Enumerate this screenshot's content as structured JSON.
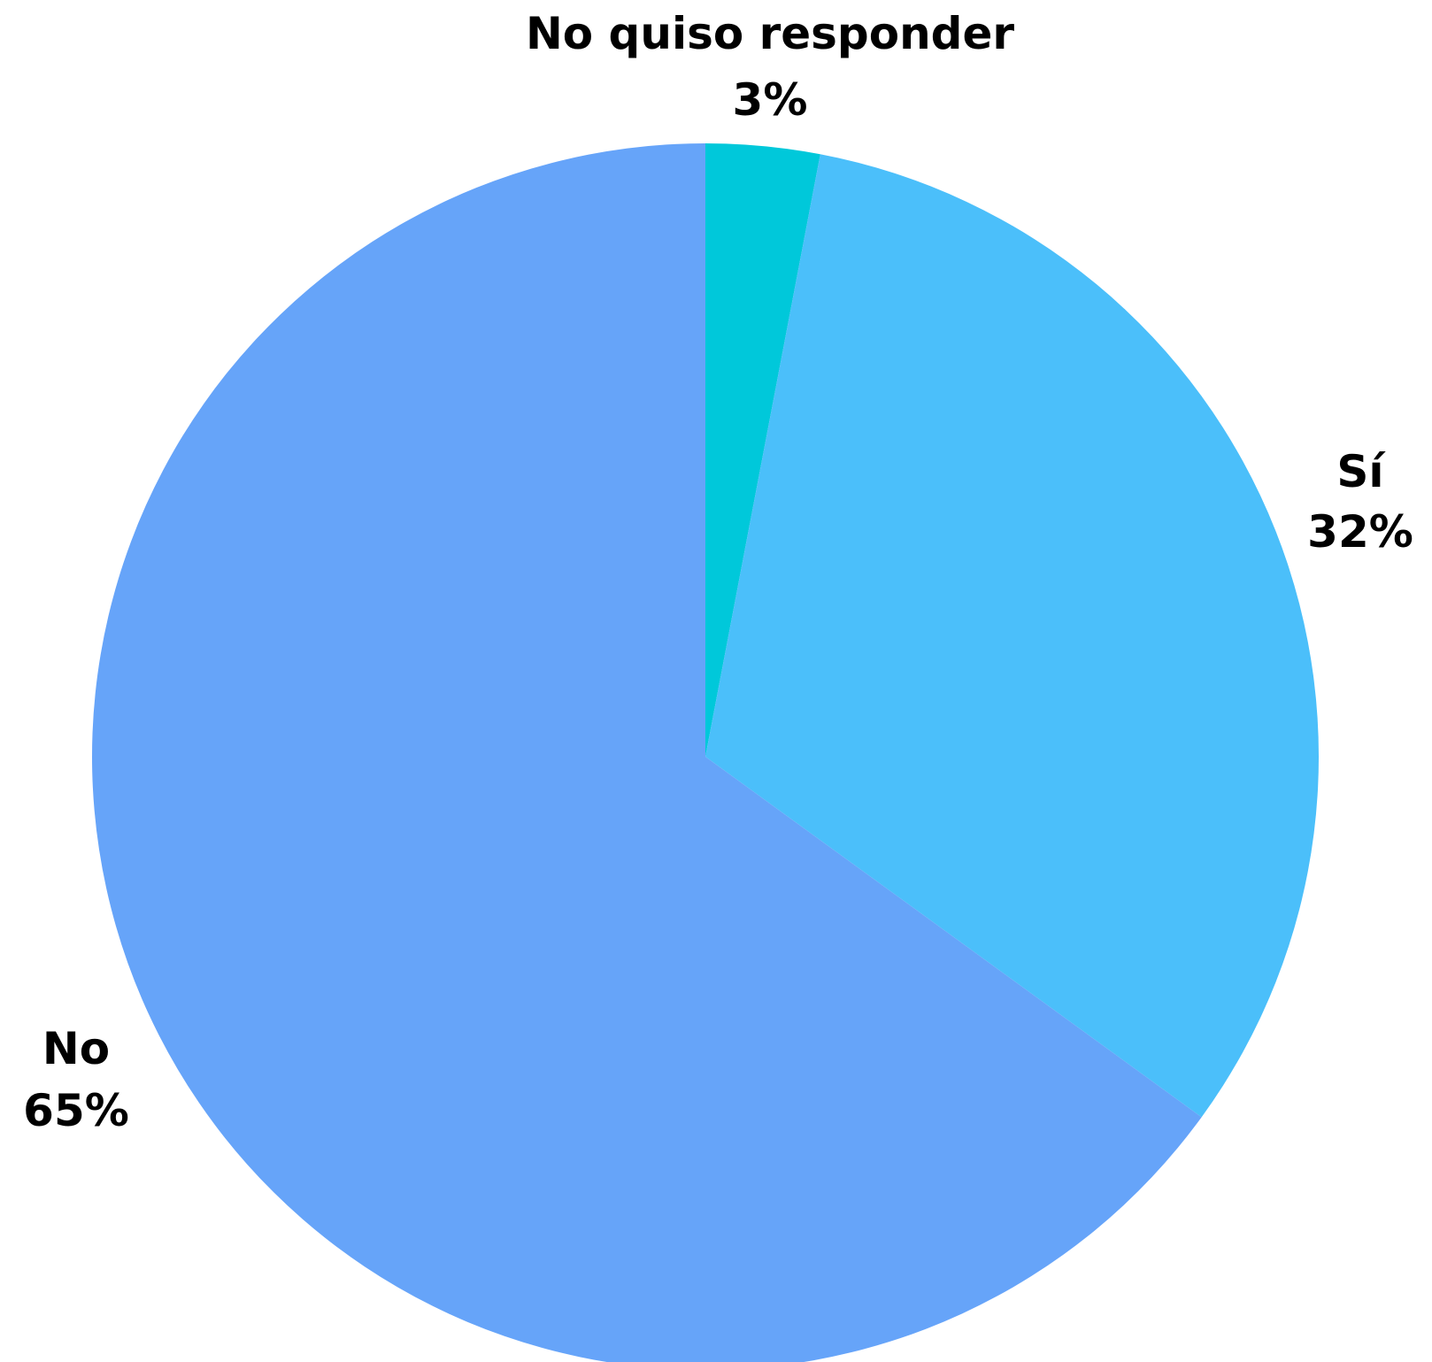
{
  "chart_data": {
    "type": "pie",
    "start_angle_deg": 0,
    "direction": "clockwise",
    "slices": [
      {
        "label": "No quiso responder",
        "value": 3,
        "value_label": "3%",
        "color": "#00c8da"
      },
      {
        "label": "Sí",
        "value": 32,
        "value_label": "32%",
        "color": "#4bbffa"
      },
      {
        "label": "No",
        "value": 65,
        "value_label": "65%",
        "color": "#66a4f9"
      }
    ]
  }
}
